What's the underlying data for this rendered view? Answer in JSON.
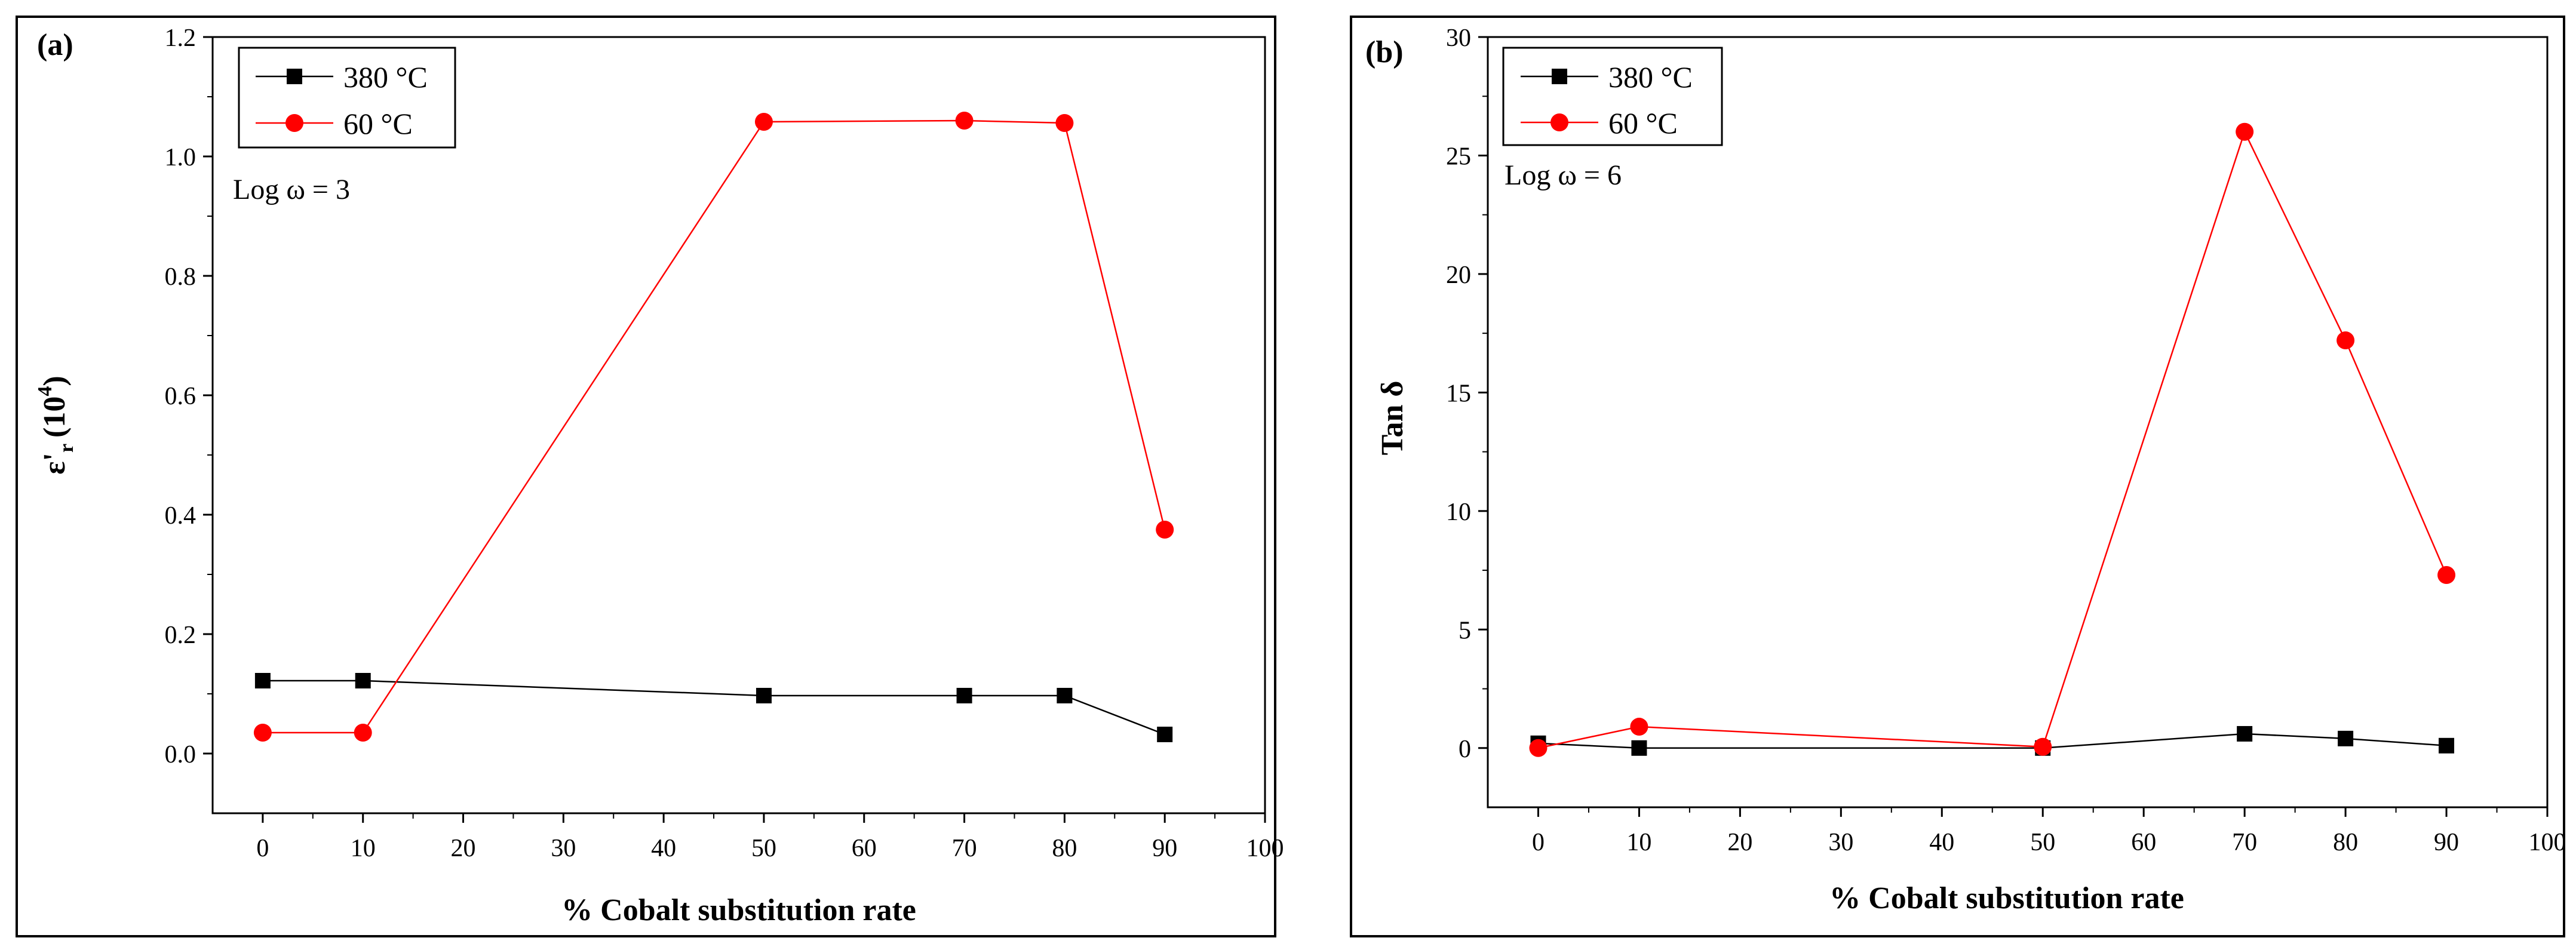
{
  "chart_data": [
    {
      "type": "line",
      "panel_label": "(a)",
      "xlabel": "% Cobalt substitution rate",
      "ylabel_main": "ε'",
      "ylabel_sub": "r",
      "ylabel_unit": "(10",
      "ylabel_sup": "4",
      "ylabel_close": ")",
      "annotation": "Log ω = 3",
      "xlim": [
        -5,
        100
      ],
      "ylim": [
        -0.1,
        1.2
      ],
      "x_ticks": [
        0,
        10,
        20,
        30,
        40,
        50,
        60,
        70,
        80,
        90,
        100
      ],
      "x_tick_labels": [
        "0",
        "10",
        "20",
        "30",
        "40",
        "50",
        "60",
        "70",
        "80",
        "90",
        "100"
      ],
      "y_ticks": [
        0.0,
        0.2,
        0.4,
        0.6,
        0.8,
        1.0,
        1.2
      ],
      "y_tick_labels": [
        "0.0",
        "0.2",
        "0.4",
        "0.6",
        "0.8",
        "1.0",
        "1.2"
      ],
      "legend_position": "top-left",
      "series": [
        {
          "name": "380 °C",
          "color": "#000000",
          "marker": "square",
          "x": [
            0,
            10,
            50,
            70,
            80,
            90
          ],
          "values": [
            0.122,
            0.122,
            0.097,
            0.097,
            0.097,
            0.032
          ]
        },
        {
          "name": "60 °C",
          "color": "#ff0000",
          "marker": "circle",
          "x": [
            0,
            10,
            50,
            70,
            80,
            90
          ],
          "values": [
            0.035,
            0.035,
            1.058,
            1.06,
            1.056,
            0.375
          ]
        }
      ]
    },
    {
      "type": "line",
      "panel_label": "(b)",
      "xlabel": "% Cobalt substitution rate",
      "ylabel_main": "Tan δ",
      "annotation": "Log ω = 6",
      "xlim": [
        -5,
        100
      ],
      "ylim": [
        -2.5,
        30
      ],
      "x_ticks": [
        0,
        10,
        20,
        30,
        40,
        50,
        60,
        70,
        80,
        90,
        100
      ],
      "x_tick_labels": [
        "0",
        "10",
        "20",
        "30",
        "40",
        "50",
        "60",
        "70",
        "80",
        "90",
        "100"
      ],
      "y_ticks": [
        0,
        5,
        10,
        15,
        20,
        25,
        30
      ],
      "y_tick_labels": [
        "0",
        "5",
        "10",
        "15",
        "20",
        "25",
        "30"
      ],
      "legend_position": "top-left",
      "series": [
        {
          "name": "380 °C",
          "color": "#000000",
          "marker": "square",
          "x": [
            0,
            10,
            50,
            70,
            80,
            90
          ],
          "values": [
            0.2,
            0.0,
            0.0,
            0.6,
            0.4,
            0.1
          ]
        },
        {
          "name": "60 °C",
          "color": "#ff0000",
          "marker": "circle",
          "x": [
            0,
            10,
            50,
            70,
            80,
            90
          ],
          "values": [
            0.0,
            0.9,
            0.05,
            26.0,
            17.2,
            7.3
          ]
        }
      ]
    }
  ]
}
